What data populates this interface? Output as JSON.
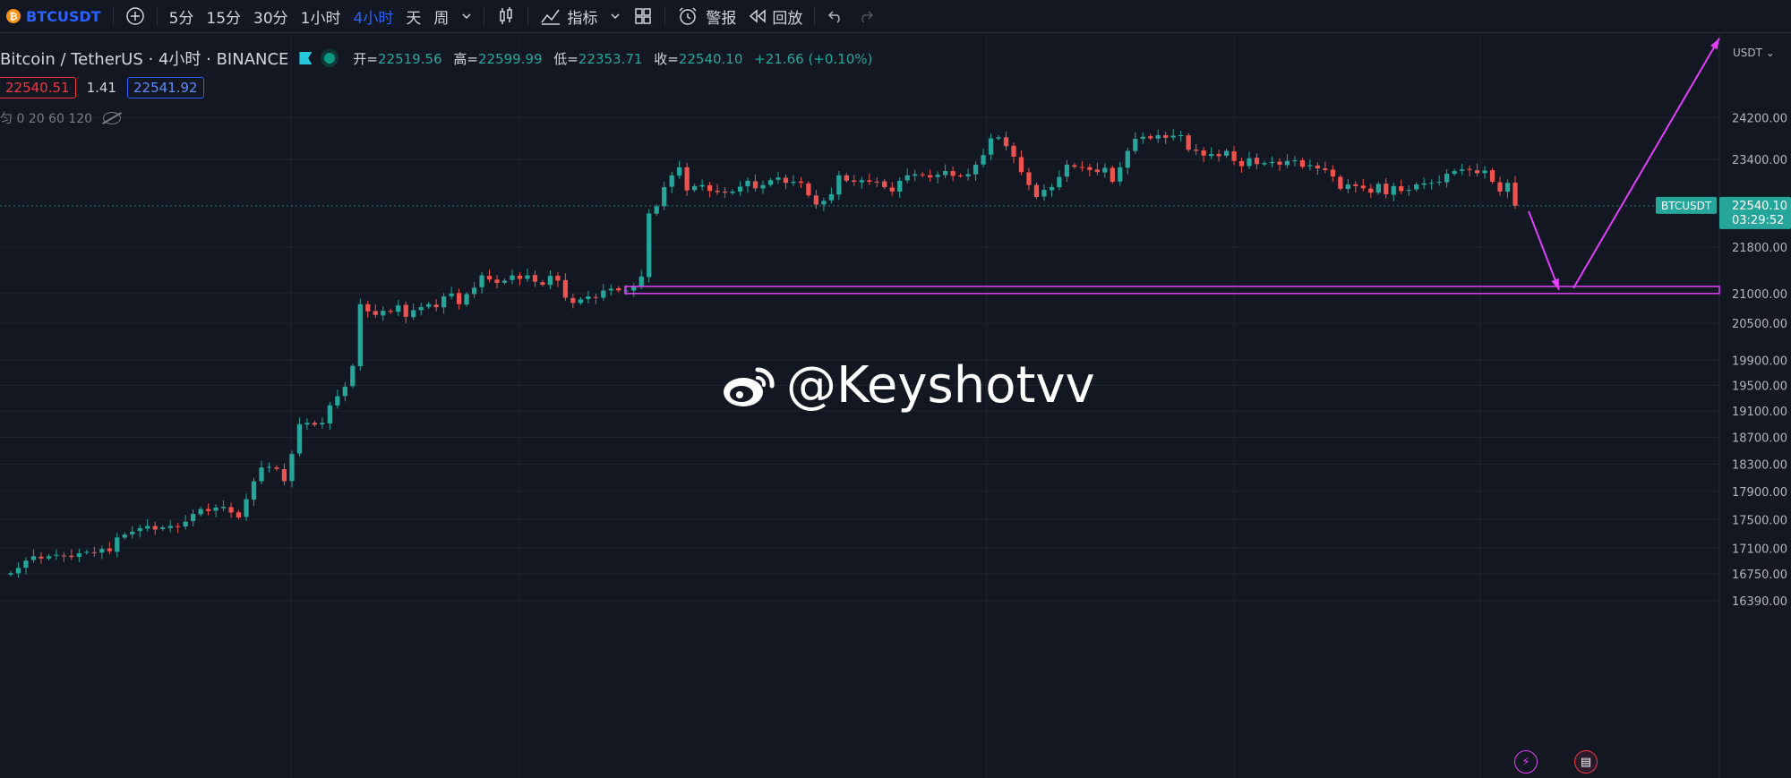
{
  "toolbar": {
    "symbol": "BTCUSDT",
    "timeframes": [
      "5分",
      "15分",
      "30分",
      "1小时",
      "4小时",
      "天",
      "周"
    ],
    "active_timeframe": "4小时",
    "indicators_label": "指标",
    "alert_label": "警报",
    "replay_label": "回放"
  },
  "legend": {
    "title": "Bitcoin / TetherUS · 4小时 · BINANCE",
    "open_label": "开=",
    "open": "22519.56",
    "high_label": "高=",
    "high": "22599.99",
    "low_label": "低=",
    "low": "22353.71",
    "close_label": "收=",
    "close": "22540.10",
    "change": "+21.66 (+0.10%)"
  },
  "prices": {
    "sell": "22540.51",
    "spread": "1.41",
    "buy": "22541.92"
  },
  "indicator_line": "匀 0 20 60 120",
  "watermark": "@Keyshotvv",
  "colors": {
    "up": "#26a69a",
    "down": "#ef5350",
    "background": "#131722",
    "annotation": "#e040fb",
    "accent": "#2962ff"
  },
  "chart_data": {
    "type": "candlestick",
    "symbol_tag": "BTCUSDT",
    "currency": "USDT",
    "last_price": "22540.10",
    "countdown": "03:29:52",
    "y_ticks": [
      "24200.00",
      "23400.00",
      "21800.00",
      "21000.00",
      "20500.00",
      "19900.00",
      "19500.00",
      "19100.00",
      "18700.00",
      "18300.00",
      "17900.00",
      "17500.00",
      "17100.00",
      "16750.00",
      "16390.00"
    ],
    "y_tick_values": [
      24200,
      23400,
      21800,
      21000,
      20500,
      19900,
      19500,
      19100,
      18700,
      18300,
      17900,
      17500,
      17100,
      16750,
      16390
    ],
    "scale": "log",
    "support_zone": [
      21000,
      21120
    ],
    "projection": [
      [
        22540,
        21060
      ],
      [
        21060,
        25800
      ]
    ],
    "closes": [
      16760,
      16830,
      16930,
      16990,
      16960,
      16990,
      17010,
      17000,
      16980,
      17030,
      17050,
      17040,
      17090,
      17060,
      17250,
      17290,
      17330,
      17380,
      17410,
      17360,
      17390,
      17410,
      17400,
      17470,
      17580,
      17650,
      17620,
      17670,
      17680,
      17600,
      17530,
      17790,
      18050,
      18250,
      18260,
      18230,
      18050,
      18450,
      18900,
      18920,
      18890,
      18920,
      19190,
      19330,
      19480,
      19810,
      20820,
      20700,
      20640,
      20710,
      20690,
      20800,
      20610,
      20720,
      20770,
      20820,
      20770,
      20950,
      21000,
      20820,
      20990,
      21100,
      21310,
      21240,
      21180,
      21220,
      21310,
      21250,
      21310,
      21200,
      21150,
      21300,
      21220,
      20930,
      20840,
      20900,
      20950,
      20930,
      21050,
      21080,
      21050,
      21050,
      21120,
      21290,
      22400,
      22530,
      22880,
      23100,
      23250,
      22820,
      22900,
      22920,
      22810,
      22790,
      22780,
      22800,
      22890,
      23000,
      22860,
      22920,
      23010,
      23060,
      22960,
      22980,
      22960,
      22730,
      22560,
      22630,
      22750,
      23100,
      23000,
      22980,
      23010,
      22980,
      22980,
      22880,
      22800,
      23000,
      23100,
      23120,
      23100,
      23060,
      23110,
      23180,
      23090,
      23090,
      23120,
      23300,
      23480,
      23800,
      23820,
      23650,
      23450,
      23160,
      22920,
      22700,
      22830,
      22880,
      23070,
      23300,
      23260,
      23250,
      23200,
      23160,
      23240,
      22980,
      23250,
      23560,
      23790,
      23830,
      23800,
      23860,
      23810,
      23850,
      23860,
      23580,
      23560,
      23470,
      23500,
      23460,
      23560,
      23370,
      23270,
      23420,
      23310,
      23330,
      23350,
      23300,
      23370,
      23380,
      23260,
      23290,
      23230,
      23200,
      23080,
      22850,
      22930,
      22900,
      22860,
      22780,
      22940,
      22750,
      22900,
      22810,
      22830,
      22930,
      22950,
      22960,
      22980,
      23130,
      23180,
      23210,
      23200,
      23140,
      23190,
      22980,
      22800,
      22960,
      22540
    ]
  }
}
